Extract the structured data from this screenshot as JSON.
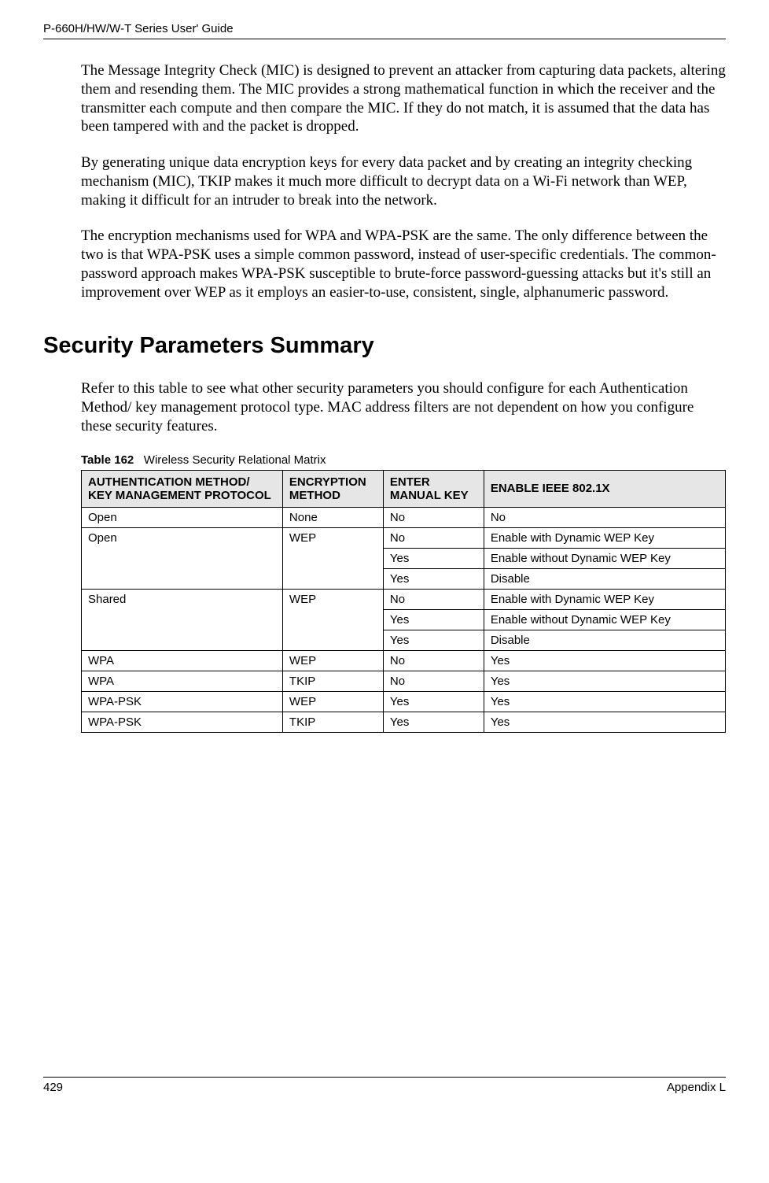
{
  "header": {
    "guide_title": "P-660H/HW/W-T Series User' Guide"
  },
  "paragraphs": {
    "p1": "The Message Integrity Check (MIC) is designed to prevent an attacker from capturing data packets, altering them and resending them. The MIC provides a strong mathematical function in which the receiver and the transmitter each compute and then compare the MIC. If they do not match, it is assumed that the data has been tampered with and the packet is dropped.",
    "p2": "By generating unique data encryption keys for every data packet and by creating an integrity checking mechanism (MIC), TKIP makes it much more difficult to decrypt data on a Wi-Fi network than WEP, making it difficult for an intruder to break into the network.",
    "p3": "The encryption mechanisms used for WPA and WPA-PSK are the same. The only difference between the two is that WPA-PSK uses a simple common password, instead of user-specific credentials. The common-password approach makes WPA-PSK susceptible to brute-force password-guessing attacks but it's still an improvement over WEP as it employs an easier-to-use, consistent, single, alphanumeric password."
  },
  "section": {
    "heading": "Security Parameters Summary",
    "intro": "Refer to this table to see what other security parameters you should configure for each Authentication Method/ key management protocol type. MAC address filters are not dependent on how you configure these security features."
  },
  "table": {
    "caption_label": "Table 162",
    "caption_text": "Wireless Security Relational Matrix",
    "columns": {
      "auth": "AUTHENTICATION METHOD/ KEY MANAGEMENT PROTOCOL",
      "enc": "ENCRYPTION METHOD",
      "manual": "ENTER MANUAL KEY",
      "enable": "ENABLE IEEE 802.1X"
    },
    "rows": [
      {
        "auth": "Open",
        "enc": "None",
        "manual": "No",
        "enable": "No"
      },
      {
        "auth": "Open",
        "enc": "WEP",
        "manual": "No",
        "enable": "Enable with Dynamic WEP Key"
      },
      {
        "auth": "",
        "enc": "",
        "manual": "Yes",
        "enable": "Enable without Dynamic WEP Key"
      },
      {
        "auth": "",
        "enc": "",
        "manual": "Yes",
        "enable": "Disable"
      },
      {
        "auth": "Shared",
        "enc": "WEP",
        "manual": "No",
        "enable": "Enable with Dynamic WEP Key"
      },
      {
        "auth": "",
        "enc": "",
        "manual": "Yes",
        "enable": "Enable without Dynamic WEP Key"
      },
      {
        "auth": "",
        "enc": "",
        "manual": "Yes",
        "enable": "Disable"
      },
      {
        "auth": "WPA",
        "enc": "WEP",
        "manual": "No",
        "enable": "Yes"
      },
      {
        "auth": "WPA",
        "enc": "TKIP",
        "manual": "No",
        "enable": "Yes"
      },
      {
        "auth": "WPA-PSK",
        "enc": "WEP",
        "manual": "Yes",
        "enable": "Yes"
      },
      {
        "auth": "WPA-PSK",
        "enc": "TKIP",
        "manual": "Yes",
        "enable": "Yes"
      }
    ],
    "header_bg": "#e6e6e6",
    "border_color": "#000000",
    "font_family": "Arial",
    "font_size_pt": 11
  },
  "footer": {
    "page_number": "429",
    "appendix": "Appendix L"
  }
}
